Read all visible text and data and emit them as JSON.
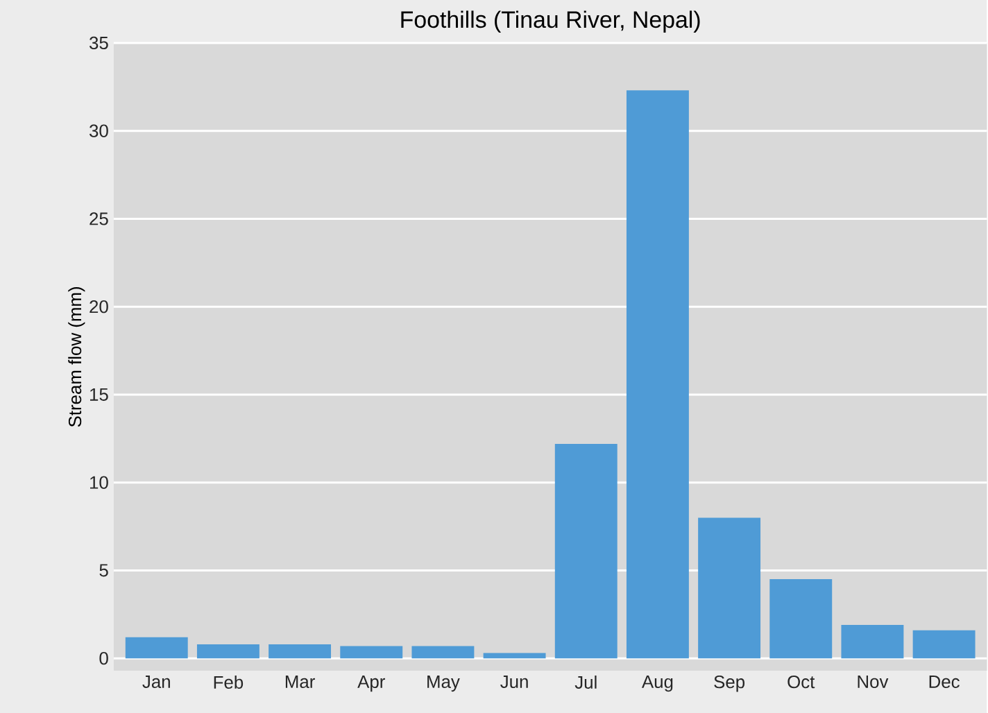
{
  "chart_data": {
    "type": "bar",
    "title": "Foothills (Tinau River, Nepal)",
    "ylabel": "Stream flow (mm)",
    "categories": [
      "Jan",
      "Feb",
      "Mar",
      "Apr",
      "May",
      "Jun",
      "Jul",
      "Aug",
      "Sep",
      "Oct",
      "Nov",
      "Dec"
    ],
    "values": [
      1.2,
      0.8,
      0.8,
      0.7,
      0.7,
      0.3,
      12.2,
      32.3,
      8.0,
      4.5,
      1.9,
      1.6
    ],
    "color": "#4f9bd6",
    "ylim": [
      0,
      35
    ],
    "yticks": [
      0,
      5,
      10,
      15,
      20,
      25,
      30,
      35
    ],
    "grid": "y"
  }
}
